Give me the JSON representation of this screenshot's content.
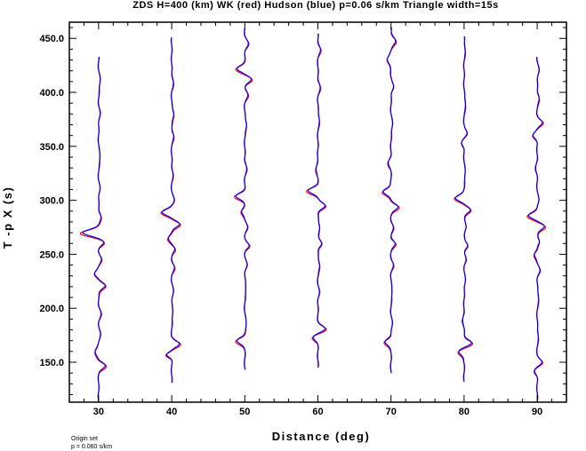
{
  "chart_data": {
    "type": "line",
    "title": "ZDS H=400 (km) WK (red) Hudson (blue) p=0.06 s/km Triangle width=15s",
    "xlabel": "Distance (deg)",
    "ylabel": "T -p X (s)",
    "xlim": [
      26,
      94
    ],
    "ylim": [
      113,
      465
    ],
    "xticks": [
      30,
      40,
      50,
      60,
      70,
      80,
      90
    ],
    "xtick_labels": [
      "30",
      "40",
      "50",
      "60",
      "70",
      "80",
      "90"
    ],
    "yticks": [
      150,
      200,
      250,
      300,
      350,
      400,
      450
    ],
    "ytick_labels": [
      "150.0",
      "200.0",
      "250.0",
      "300.0",
      "350.0",
      "400.0",
      "450.0"
    ],
    "grid": false,
    "legend": "none",
    "colors": {
      "wk": "#ff0000",
      "hudson": "#0000ff",
      "axis": "#000000"
    },
    "series_colors": {
      "WK": "#ff0000",
      "Hudson": "#0000ff"
    },
    "traces": [
      {
        "distance": 30,
        "t_start": 113,
        "t_end": 433,
        "features": [
          {
            "t": 147,
            "amp": 1.6,
            "w": 4
          },
          {
            "t": 160,
            "amp": -0.9,
            "w": 5
          },
          {
            "t": 175,
            "amp": 0.4,
            "w": 6
          },
          {
            "t": 195,
            "amp": 0.5,
            "w": 6
          },
          {
            "t": 221,
            "amp": 1.7,
            "w": 4
          },
          {
            "t": 232,
            "amp": -1.0,
            "w": 4
          },
          {
            "t": 245,
            "amp": 0.6,
            "w": 5
          },
          {
            "t": 261,
            "amp": 1.2,
            "w": 4
          },
          {
            "t": 270,
            "amp": -3.8,
            "w": 4
          },
          {
            "t": 285,
            "amp": 0.6,
            "w": 5
          },
          {
            "t": 310,
            "amp": 0.3,
            "w": 6
          },
          {
            "t": 340,
            "amp": 0.4,
            "w": 6
          },
          {
            "t": 380,
            "amp": 0.3,
            "w": 7
          },
          {
            "t": 410,
            "amp": 0.4,
            "w": 7
          }
        ]
      },
      {
        "distance": 40,
        "t_start": 131,
        "t_end": 451,
        "features": [
          {
            "t": 157,
            "amp": -1.2,
            "w": 3
          },
          {
            "t": 167,
            "amp": 1.8,
            "w": 4
          },
          {
            "t": 195,
            "amp": 0.3,
            "w": 6
          },
          {
            "t": 215,
            "amp": 0.4,
            "w": 6
          },
          {
            "t": 238,
            "amp": 0.6,
            "w": 5
          },
          {
            "t": 255,
            "amp": 0.7,
            "w": 4
          },
          {
            "t": 265,
            "amp": -0.8,
            "w": 4
          },
          {
            "t": 278,
            "amp": 2.0,
            "w": 4
          },
          {
            "t": 289,
            "amp": -2.4,
            "w": 4
          },
          {
            "t": 300,
            "amp": 0.6,
            "w": 5
          },
          {
            "t": 325,
            "amp": 0.3,
            "w": 6
          },
          {
            "t": 360,
            "amp": 0.5,
            "w": 5
          },
          {
            "t": 380,
            "amp": 0.6,
            "w": 5
          },
          {
            "t": 410,
            "amp": 0.4,
            "w": 6
          }
        ]
      },
      {
        "distance": 50,
        "t_start": 143,
        "t_end": 460,
        "features": [
          {
            "t": 170,
            "amp": -1.9,
            "w": 4
          },
          {
            "t": 185,
            "amp": 0.4,
            "w": 6
          },
          {
            "t": 218,
            "amp": 0.3,
            "w": 6
          },
          {
            "t": 240,
            "amp": 0.5,
            "w": 5
          },
          {
            "t": 258,
            "amp": 1.0,
            "w": 4
          },
          {
            "t": 275,
            "amp": 0.6,
            "w": 5
          },
          {
            "t": 290,
            "amp": -0.8,
            "w": 4
          },
          {
            "t": 304,
            "amp": -2.1,
            "w": 4
          },
          {
            "t": 330,
            "amp": 0.4,
            "w": 6
          },
          {
            "t": 370,
            "amp": 0.5,
            "w": 5
          },
          {
            "t": 398,
            "amp": 0.7,
            "w": 5
          },
          {
            "t": 412,
            "amp": 1.5,
            "w": 4
          },
          {
            "t": 422,
            "amp": -1.8,
            "w": 4
          },
          {
            "t": 445,
            "amp": 0.8,
            "w": 5
          }
        ]
      },
      {
        "distance": 60,
        "t_start": 145,
        "t_end": 455,
        "features": [
          {
            "t": 173,
            "amp": -1.1,
            "w": 4
          },
          {
            "t": 181,
            "amp": 1.7,
            "w": 4
          },
          {
            "t": 215,
            "amp": 0.3,
            "w": 6
          },
          {
            "t": 240,
            "amp": 0.5,
            "w": 5
          },
          {
            "t": 260,
            "amp": 1.0,
            "w": 4
          },
          {
            "t": 275,
            "amp": 0.5,
            "w": 5
          },
          {
            "t": 295,
            "amp": 1.8,
            "w": 4
          },
          {
            "t": 309,
            "amp": -2.3,
            "w": 4
          },
          {
            "t": 330,
            "amp": -0.4,
            "w": 6
          },
          {
            "t": 375,
            "amp": 0.4,
            "w": 6
          },
          {
            "t": 405,
            "amp": 0.5,
            "w": 6
          },
          {
            "t": 440,
            "amp": 0.6,
            "w": 5
          }
        ]
      },
      {
        "distance": 70,
        "t_start": 140,
        "t_end": 460,
        "features": [
          {
            "t": 169,
            "amp": -1.5,
            "w": 4
          },
          {
            "t": 185,
            "amp": 0.3,
            "w": 6
          },
          {
            "t": 215,
            "amp": 0.3,
            "w": 6
          },
          {
            "t": 240,
            "amp": 0.5,
            "w": 5
          },
          {
            "t": 260,
            "amp": 1.0,
            "w": 4
          },
          {
            "t": 275,
            "amp": 0.5,
            "w": 5
          },
          {
            "t": 294,
            "amp": 1.7,
            "w": 4
          },
          {
            "t": 308,
            "amp": -2.0,
            "w": 4
          },
          {
            "t": 335,
            "amp": -0.6,
            "w": 5
          },
          {
            "t": 370,
            "amp": 0.4,
            "w": 6
          },
          {
            "t": 405,
            "amp": 0.6,
            "w": 5
          },
          {
            "t": 430,
            "amp": -0.9,
            "w": 5
          },
          {
            "t": 448,
            "amp": 1.1,
            "w": 5
          }
        ]
      },
      {
        "distance": 80,
        "t_start": 132,
        "t_end": 452,
        "features": [
          {
            "t": 160,
            "amp": -1.4,
            "w": 4
          },
          {
            "t": 168,
            "amp": 1.9,
            "w": 4
          },
          {
            "t": 190,
            "amp": -0.3,
            "w": 6
          },
          {
            "t": 225,
            "amp": 0.3,
            "w": 6
          },
          {
            "t": 245,
            "amp": 0.4,
            "w": 5
          },
          {
            "t": 258,
            "amp": 0.9,
            "w": 4
          },
          {
            "t": 275,
            "amp": 0.5,
            "w": 5
          },
          {
            "t": 291,
            "amp": 1.6,
            "w": 4
          },
          {
            "t": 302,
            "amp": -2.1,
            "w": 4
          },
          {
            "t": 325,
            "amp": 0.3,
            "w": 6
          },
          {
            "t": 353,
            "amp": -0.6,
            "w": 4
          },
          {
            "t": 362,
            "amp": 0.7,
            "w": 4
          },
          {
            "t": 390,
            "amp": 0.4,
            "w": 6
          },
          {
            "t": 440,
            "amp": 0.3,
            "w": 6
          }
        ]
      },
      {
        "distance": 90,
        "t_start": 113,
        "t_end": 433,
        "features": [
          {
            "t": 142,
            "amp": -0.6,
            "w": 4
          },
          {
            "t": 150,
            "amp": 1.1,
            "w": 4
          },
          {
            "t": 175,
            "amp": 0.3,
            "w": 6
          },
          {
            "t": 210,
            "amp": 0.4,
            "w": 6
          },
          {
            "t": 235,
            "amp": 0.6,
            "w": 5
          },
          {
            "t": 250,
            "amp": -0.7,
            "w": 4
          },
          {
            "t": 262,
            "amp": 0.6,
            "w": 4
          },
          {
            "t": 276,
            "amp": 1.8,
            "w": 4
          },
          {
            "t": 286,
            "amp": -2.2,
            "w": 4
          },
          {
            "t": 300,
            "amp": 0.4,
            "w": 5
          },
          {
            "t": 330,
            "amp": -0.3,
            "w": 6
          },
          {
            "t": 360,
            "amp": -1.0,
            "w": 4
          },
          {
            "t": 372,
            "amp": 1.2,
            "w": 4
          },
          {
            "t": 395,
            "amp": 0.5,
            "w": 5
          },
          {
            "t": 420,
            "amp": 0.4,
            "w": 6
          }
        ]
      }
    ]
  },
  "footer": {
    "line1": "Origin set",
    "line2": "p = 0.060 s/km"
  }
}
